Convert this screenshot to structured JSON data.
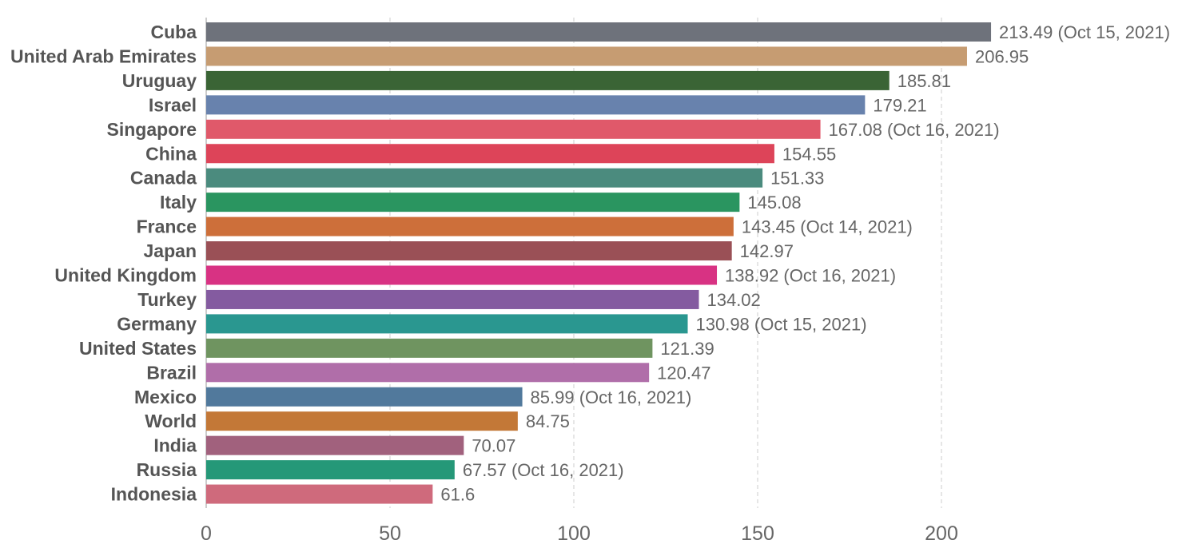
{
  "chart_data": {
    "type": "bar",
    "orientation": "horizontal",
    "title": "",
    "xlabel": "",
    "ylabel": "",
    "xlim": [
      0,
      250
    ],
    "grid": true,
    "legend": "none",
    "x_ticks": [
      "0",
      "50",
      "100",
      "150",
      "200"
    ],
    "categories": [
      "Cuba",
      "United Arab Emirates",
      "Uruguay",
      "Israel",
      "Singapore",
      "China",
      "Canada",
      "Italy",
      "France",
      "Japan",
      "United Kingdom",
      "Turkey",
      "Germany",
      "United States",
      "Brazil",
      "Mexico",
      "World",
      "India",
      "Russia",
      "Indonesia"
    ],
    "values": [
      213.49,
      206.95,
      185.81,
      179.21,
      167.08,
      154.55,
      151.33,
      145.08,
      143.45,
      142.97,
      138.92,
      134.02,
      130.98,
      121.39,
      120.47,
      85.99,
      84.75,
      70.07,
      67.57,
      61.6
    ],
    "labels": [
      "213.49 (Oct 15, 2021)",
      "206.95",
      "185.81",
      "179.21",
      "167.08 (Oct 16, 2021)",
      "154.55",
      "151.33",
      "145.08",
      "143.45 (Oct 14, 2021)",
      "142.97",
      "138.92 (Oct 16, 2021)",
      "134.02",
      "130.98 (Oct 15, 2021)",
      "121.39",
      "120.47",
      "85.99 (Oct 16, 2021)",
      "84.75",
      "70.07",
      "67.57 (Oct 16, 2021)",
      "61.6"
    ],
    "colors": [
      "#6e727b",
      "#c69c72",
      "#3a6435",
      "#6882ad",
      "#e0596a",
      "#dd4459",
      "#4b8b7e",
      "#2a9560",
      "#cd6f3a",
      "#9a5056",
      "#d83283",
      "#845ba0",
      "#2a9790",
      "#6f9460",
      "#b06ea9",
      "#51799c",
      "#c37837",
      "#a1617d",
      "#259878",
      "#cf6a7c"
    ]
  }
}
